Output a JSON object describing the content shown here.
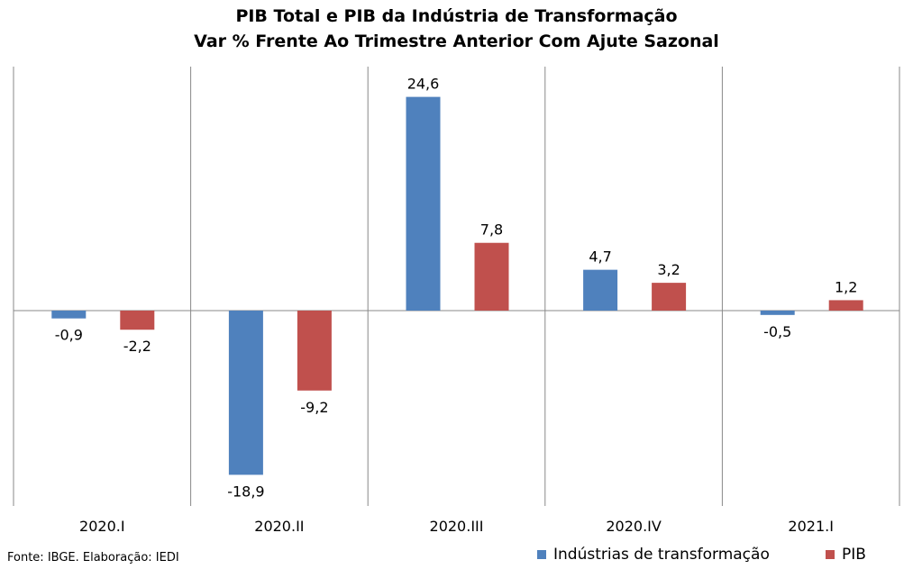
{
  "chart_data": {
    "type": "bar",
    "title": "PIB Total e PIB da Indústria de Transformação",
    "subtitle": "Var % Frente Ao Trimestre Anterior Com Ajute Sazonal",
    "categories": [
      "2020.I",
      "2020.II",
      "2020.III",
      "2020.IV",
      "2021.I"
    ],
    "series": [
      {
        "name": "Indústrias de transformação",
        "color": "#4f81bd",
        "values": [
          -0.9,
          -18.9,
          24.6,
          4.7,
          -0.5
        ],
        "labels": [
          "-0,9",
          "-18,9",
          "24,6",
          "4,7",
          "-0,5"
        ]
      },
      {
        "name": "PIB",
        "color": "#c0504d",
        "values": [
          -2.2,
          -9.2,
          7.8,
          3.2,
          1.2
        ],
        "labels": [
          "-2,2",
          "-9,2",
          "7,8",
          "3,2",
          "1,2"
        ]
      }
    ],
    "ylim": [
      -22.5,
      28.5
    ],
    "grid": "vertical category separators",
    "legend": "bottom-right"
  },
  "source": "Fonte: IBGE. Elaboração: IEDI"
}
